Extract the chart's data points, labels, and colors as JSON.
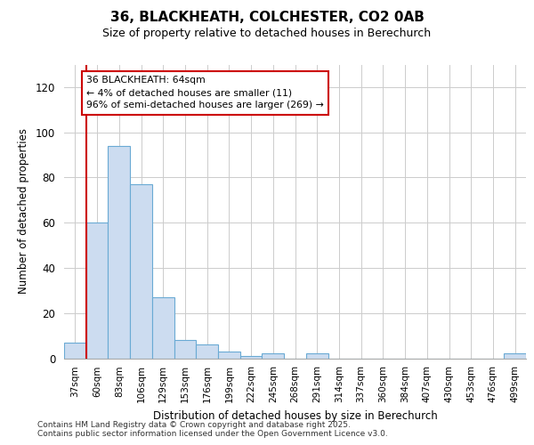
{
  "title_line1": "36, BLACKHEATH, COLCHESTER, CO2 0AB",
  "title_line2": "Size of property relative to detached houses in Berechurch",
  "xlabel": "Distribution of detached houses by size in Berechurch",
  "ylabel": "Number of detached properties",
  "categories": [
    "37sqm",
    "60sqm",
    "83sqm",
    "106sqm",
    "129sqm",
    "153sqm",
    "176sqm",
    "199sqm",
    "222sqm",
    "245sqm",
    "268sqm",
    "291sqm",
    "314sqm",
    "337sqm",
    "360sqm",
    "384sqm",
    "407sqm",
    "430sqm",
    "453sqm",
    "476sqm",
    "499sqm"
  ],
  "values": [
    7,
    60,
    94,
    77,
    27,
    8,
    6,
    3,
    1,
    2,
    0,
    2,
    0,
    0,
    0,
    0,
    0,
    0,
    0,
    0,
    2
  ],
  "bar_color": "#ccdcf0",
  "bar_edge_color": "#6aaad4",
  "ylim": [
    0,
    130
  ],
  "yticks": [
    0,
    20,
    40,
    60,
    80,
    100,
    120
  ],
  "vline_x": 0.5,
  "annotation_title": "36 BLACKHEATH: 64sqm",
  "annotation_line1": "← 4% of detached houses are smaller (11)",
  "annotation_line2": "96% of semi-detached houses are larger (269) →",
  "vline_color": "#cc0000",
  "annotation_box_color": "#cc0000",
  "grid_color": "#cccccc",
  "bg_color": "#ffffff",
  "footer_line1": "Contains HM Land Registry data © Crown copyright and database right 2025.",
  "footer_line2": "Contains public sector information licensed under the Open Government Licence v3.0."
}
